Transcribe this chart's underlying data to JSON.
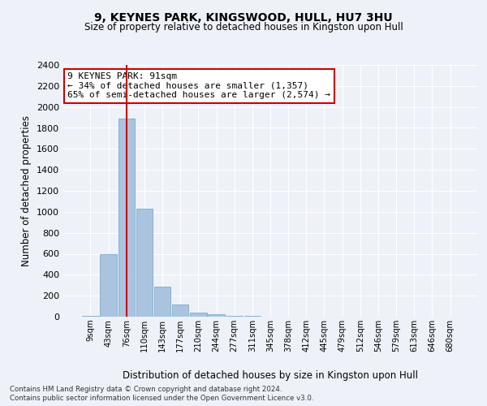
{
  "title1": "9, KEYNES PARK, KINGSWOOD, HULL, HU7 3HU",
  "title2": "Size of property relative to detached houses in Kingston upon Hull",
  "xlabel": "Distribution of detached houses by size in Kingston upon Hull",
  "ylabel": "Number of detached properties",
  "footnote1": "Contains HM Land Registry data © Crown copyright and database right 2024.",
  "footnote2": "Contains public sector information licensed under the Open Government Licence v3.0.",
  "bar_labels": [
    "9sqm",
    "43sqm",
    "76sqm",
    "110sqm",
    "143sqm",
    "177sqm",
    "210sqm",
    "244sqm",
    "277sqm",
    "311sqm",
    "345sqm",
    "378sqm",
    "412sqm",
    "445sqm",
    "479sqm",
    "512sqm",
    "546sqm",
    "579sqm",
    "613sqm",
    "646sqm",
    "680sqm"
  ],
  "bar_values": [
    10,
    600,
    1890,
    1030,
    290,
    115,
    38,
    22,
    10,
    4,
    2,
    2,
    1,
    0,
    0,
    0,
    0,
    0,
    0,
    0,
    0
  ],
  "bar_color": "#aac4e0",
  "bar_edge_color": "#7aacc8",
  "highlight_bar_index": 2,
  "highlight_color": "#cc0000",
  "annotation_title": "9 KEYNES PARK: 91sqm",
  "annotation_line2": "← 34% of detached houses are smaller (1,357)",
  "annotation_line3": "65% of semi-detached houses are larger (2,574) →",
  "ylim": [
    0,
    2400
  ],
  "yticks": [
    0,
    200,
    400,
    600,
    800,
    1000,
    1200,
    1400,
    1600,
    1800,
    2000,
    2200,
    2400
  ],
  "bg_color": "#eef2f8",
  "grid_color": "#ffffff",
  "annotation_box_color": "#ffffff",
  "annotation_box_edge": "#cc0000"
}
